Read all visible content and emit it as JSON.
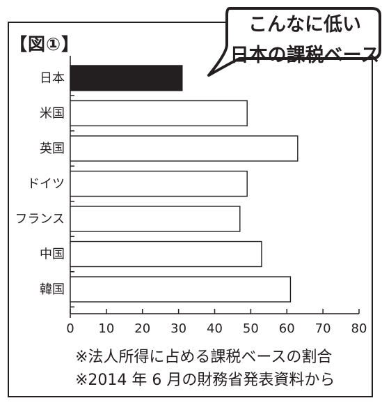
{
  "figure_label": "【図①】",
  "callout": {
    "line1": "こんなに低い",
    "line2": "日本の課税ベース"
  },
  "notes": [
    "※法人所得に占める課税ベースの割合",
    "※2014 年 6 月の財務省発表資料から"
  ],
  "colors": {
    "highlight_bar": "#231f20",
    "other_bar": "#ffffff",
    "ink": "#231f20"
  },
  "chart_data": {
    "type": "bar",
    "orientation": "horizontal",
    "categories": [
      "日本",
      "米国",
      "英国",
      "ドイツ",
      "フランス",
      "中国",
      "韓国"
    ],
    "values": [
      31,
      49,
      63,
      49,
      47,
      53,
      61
    ],
    "highlight": "日本",
    "xlim": [
      0,
      80
    ],
    "xticks": [
      0,
      10,
      20,
      30,
      40,
      50,
      60,
      70,
      80
    ],
    "grid": false,
    "legend": "none",
    "title": "",
    "xlabel": "",
    "ylabel": ""
  }
}
